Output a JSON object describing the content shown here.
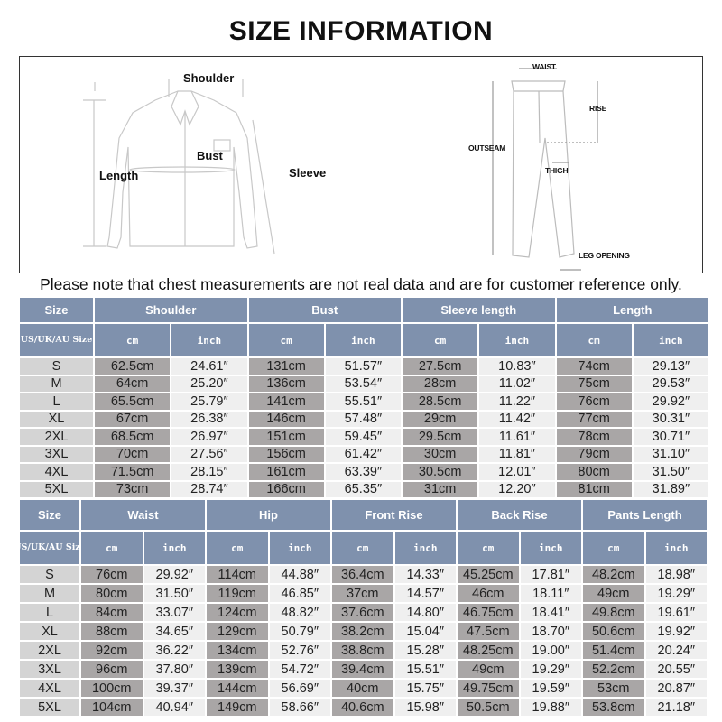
{
  "title": "SIZE INFORMATION",
  "diagram": {
    "shirt_labels": {
      "shoulder": "Shoulder",
      "bust": "Bust",
      "length": "Length",
      "sleeve": "Sleeve"
    },
    "pants_labels": {
      "waist": "WAIST",
      "rise": "RISE",
      "outseam": "OUTSEAM",
      "thigh": "THIGH",
      "leg_opening": "LEG OPENING"
    }
  },
  "note": "Please note that chest measurements are not real data and are for customer reference only.",
  "colors": {
    "header": "#7f91ad",
    "size_cell": "#d4d4d4",
    "cm_cell": "#a9a6a6",
    "inch_cell": "#efefef"
  },
  "top_table": {
    "size_header": "Size",
    "size_subheader": "US/UK/AU Size",
    "groups": [
      "Shoulder",
      "Bust",
      "Sleeve length",
      "Length"
    ],
    "unit_labels": [
      "cm",
      "inch"
    ],
    "rows": [
      {
        "size": "S",
        "values": [
          "62.5cm",
          "24.61″",
          "131cm",
          "51.57″",
          "27.5cm",
          "10.83″",
          "74cm",
          "29.13″"
        ]
      },
      {
        "size": "M",
        "values": [
          "64cm",
          "25.20″",
          "136cm",
          "53.54″",
          "28cm",
          "11.02″",
          "75cm",
          "29.53″"
        ]
      },
      {
        "size": "L",
        "values": [
          "65.5cm",
          "25.79″",
          "141cm",
          "55.51″",
          "28.5cm",
          "11.22″",
          "76cm",
          "29.92″"
        ]
      },
      {
        "size": "XL",
        "values": [
          "67cm",
          "26.38″",
          "146cm",
          "57.48″",
          "29cm",
          "11.42″",
          "77cm",
          "30.31″"
        ]
      },
      {
        "size": "2XL",
        "values": [
          "68.5cm",
          "26.97″",
          "151cm",
          "59.45″",
          "29.5cm",
          "11.61″",
          "78cm",
          "30.71″"
        ]
      },
      {
        "size": "3XL",
        "values": [
          "70cm",
          "27.56″",
          "156cm",
          "61.42″",
          "30cm",
          "11.81″",
          "79cm",
          "31.10″"
        ]
      },
      {
        "size": "4XL",
        "values": [
          "71.5cm",
          "28.15″",
          "161cm",
          "63.39″",
          "30.5cm",
          "12.01″",
          "80cm",
          "31.50″"
        ]
      },
      {
        "size": "5XL",
        "values": [
          "73cm",
          "28.74″",
          "166cm",
          "65.35″",
          "31cm",
          "12.20″",
          "81cm",
          "31.89″"
        ]
      }
    ]
  },
  "bottom_table": {
    "size_header": "Size",
    "size_subheader": "US/UK/AU Size",
    "groups": [
      "Waist",
      "Hip",
      "Front Rise",
      "Back Rise",
      "Pants Length"
    ],
    "unit_labels": [
      "cm",
      "inch"
    ],
    "rows": [
      {
        "size": "S",
        "values": [
          "76cm",
          "29.92″",
          "114cm",
          "44.88″",
          "36.4cm",
          "14.33″",
          "45.25cm",
          "17.81″",
          "48.2cm",
          "18.98″"
        ]
      },
      {
        "size": "M",
        "values": [
          "80cm",
          "31.50″",
          "119cm",
          "46.85″",
          "37cm",
          "14.57″",
          "46cm",
          "18.11″",
          "49cm",
          "19.29″"
        ]
      },
      {
        "size": "L",
        "values": [
          "84cm",
          "33.07″",
          "124cm",
          "48.82″",
          "37.6cm",
          "14.80″",
          "46.75cm",
          "18.41″",
          "49.8cm",
          "19.61″"
        ]
      },
      {
        "size": "XL",
        "values": [
          "88cm",
          "34.65″",
          "129cm",
          "50.79″",
          "38.2cm",
          "15.04″",
          "47.5cm",
          "18.70″",
          "50.6cm",
          "19.92″"
        ]
      },
      {
        "size": "2XL",
        "values": [
          "92cm",
          "36.22″",
          "134cm",
          "52.76″",
          "38.8cm",
          "15.28″",
          "48.25cm",
          "19.00″",
          "51.4cm",
          "20.24″"
        ]
      },
      {
        "size": "3XL",
        "values": [
          "96cm",
          "37.80″",
          "139cm",
          "54.72″",
          "39.4cm",
          "15.51″",
          "49cm",
          "19.29″",
          "52.2cm",
          "20.55″"
        ]
      },
      {
        "size": "4XL",
        "values": [
          "100cm",
          "39.37″",
          "144cm",
          "56.69″",
          "40cm",
          "15.75″",
          "49.75cm",
          "19.59″",
          "53cm",
          "20.87″"
        ]
      },
      {
        "size": "5XL",
        "values": [
          "104cm",
          "40.94″",
          "149cm",
          "58.66″",
          "40.6cm",
          "15.98″",
          "50.5cm",
          "19.88″",
          "53.8cm",
          "21.18″"
        ]
      }
    ]
  }
}
